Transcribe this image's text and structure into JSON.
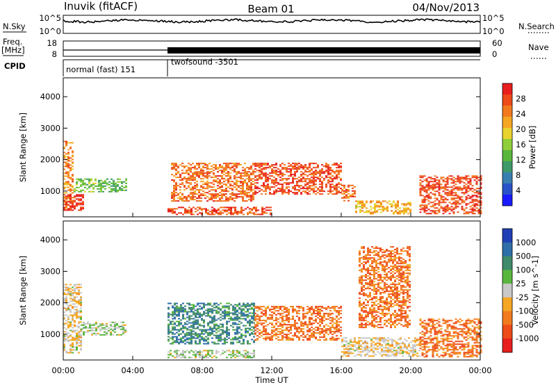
{
  "header": {
    "station": "Inuvik (fitACF)",
    "beam": "Beam 01",
    "date": "04/Nov/2013"
  },
  "top_panels": {
    "nsky_label": "N.Sky",
    "nsearch_label": "N.Search",
    "freq_label_line1": "Freq.",
    "freq_label_line2": "[MHz]",
    "nave_label": "Nave",
    "cpid_label": "CPID",
    "noise_ticks": [
      "10^5",
      "10^0"
    ],
    "freq_ticks": [
      "18",
      "8"
    ],
    "nave_ticks": [
      "60",
      "0"
    ],
    "cpid_segments": [
      {
        "label": "normal (fast) 151",
        "start_hour": 0,
        "end_hour": 6.0
      },
      {
        "label": "twofsound -3501",
        "start_hour": 6.0,
        "end_hour": 24
      }
    ]
  },
  "axes": {
    "xlabel": "Time UT",
    "ylabel": "Slant Range [km]",
    "xticks": [
      "00:00",
      "04:00",
      "08:00",
      "12:00",
      "16:00",
      "20:00",
      "00:00"
    ],
    "yticks": [
      "1000",
      "2000",
      "3000",
      "4000"
    ]
  },
  "colorbars": {
    "power": {
      "label": "Power [dB]",
      "ticks": [
        "4",
        "8",
        "12",
        "16",
        "20",
        "24",
        "28"
      ],
      "colors": [
        "#1a1aff",
        "#2a52c8",
        "#3a7fb0",
        "#3f9a6a",
        "#59b63c",
        "#8fcf3a",
        "#e8d22e",
        "#f5a623",
        "#f27a1e",
        "#ee4a1a",
        "#e81e1e"
      ]
    },
    "velocity": {
      "label": "Velocity [m s^-1]",
      "ticks": [
        "1000",
        "500",
        "100",
        "25",
        "-25",
        "-100",
        "-500",
        "-1000"
      ],
      "colors": [
        "#1f3fb5",
        "#2f6ea8",
        "#3f8a6a",
        "#59b63c",
        "#c8c8c8",
        "#f5a623",
        "#f27a1e",
        "#ee4a1a",
        "#e81e1e"
      ]
    }
  },
  "chart_data": {
    "type": "heatmap",
    "title": "Inuvik (fitACF) Beam 01 04/Nov/2013",
    "xlabel": "Time UT",
    "ylabel": "Slant Range [km]",
    "xlim": [
      0,
      24
    ],
    "ylim": [
      180,
      4600
    ],
    "panels": [
      {
        "name": "Power [dB]",
        "zlim": [
          0,
          30
        ],
        "regions": [
          {
            "t": [
              0.0,
              0.6
            ],
            "r": [
              400,
              2600
            ],
            "value": 22
          },
          {
            "t": [
              0.6,
              2.0
            ],
            "r": [
              1000,
              1400
            ],
            "value": 14
          },
          {
            "t": [
              2.0,
              3.6
            ],
            "r": [
              1000,
              1400
            ],
            "value": 12
          },
          {
            "t": [
              0.0,
              1.2
            ],
            "r": [
              400,
              900
            ],
            "value": 28
          },
          {
            "t": [
              6.2,
              11.0
            ],
            "r": [
              700,
              1900
            ],
            "value": 24
          },
          {
            "t": [
              6.0,
              12.0
            ],
            "r": [
              250,
              500
            ],
            "value": 26
          },
          {
            "t": [
              11.0,
              16.0
            ],
            "r": [
              900,
              1900
            ],
            "value": 26
          },
          {
            "t": [
              16.0,
              16.8
            ],
            "r": [
              700,
              1200
            ],
            "value": 24
          },
          {
            "t": [
              16.8,
              20.0
            ],
            "r": [
              300,
              700
            ],
            "value": 20
          },
          {
            "t": [
              20.5,
              24.0
            ],
            "r": [
              300,
              1500
            ],
            "value": 26
          }
        ]
      },
      {
        "name": "Velocity [m s^-1]",
        "zlim": [
          -1000,
          1000
        ],
        "regions": [
          {
            "t": [
              0.0,
              1.0
            ],
            "r": [
              400,
              2600
            ],
            "value": -100
          },
          {
            "t": [
              1.0,
              3.6
            ],
            "r": [
              1000,
              1400
            ],
            "value": 100
          },
          {
            "t": [
              6.0,
              11.0
            ],
            "r": [
              700,
              2000
            ],
            "value": 500
          },
          {
            "t": [
              6.0,
              11.0
            ],
            "r": [
              250,
              500
            ],
            "value": 100
          },
          {
            "t": [
              11.0,
              16.0
            ],
            "r": [
              800,
              1900
            ],
            "value": -500
          },
          {
            "t": [
              16.0,
              20.5
            ],
            "r": [
              300,
              900
            ],
            "value": -100
          },
          {
            "t": [
              17.0,
              20.0
            ],
            "r": [
              1200,
              3800
            ],
            "value": -500
          },
          {
            "t": [
              20.5,
              24.0
            ],
            "r": [
              300,
              1500
            ],
            "value": -500
          }
        ]
      }
    ]
  }
}
